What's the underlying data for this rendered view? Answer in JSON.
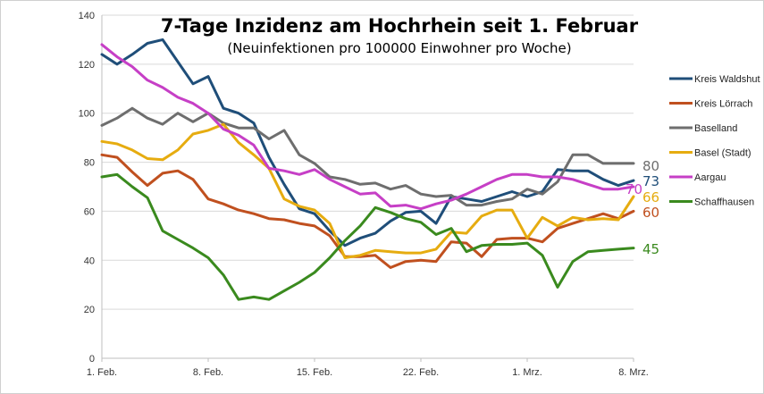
{
  "chart_data": {
    "type": "line",
    "title": "7-Tage Inzidenz am Hochrhein seit 1. Februar",
    "subtitle": "(Neuinfektionen pro 100000 Einwohner pro Woche)",
    "xlabel": "",
    "ylabel": "",
    "ylim": [
      0,
      140
    ],
    "yticks": [
      "0",
      "20",
      "40",
      "60",
      "80",
      "100",
      "120",
      "140"
    ],
    "xticks": [
      {
        "day": 1,
        "label": "1. Feb."
      },
      {
        "day": 8,
        "label": "8. Feb."
      },
      {
        "day": 15,
        "label": "15. Feb."
      },
      {
        "day": 22,
        "label": "22. Feb."
      },
      {
        "day": 29,
        "label": "1. Mrz."
      },
      {
        "day": 36,
        "label": "8. Mrz."
      }
    ],
    "grid": "horizontal",
    "legend_position": "right",
    "series": [
      {
        "name": "Kreis Waldshut",
        "color": "#1f4e79",
        "end_label": "73",
        "points": [
          [
            1,
            124
          ],
          [
            2,
            120
          ],
          [
            3,
            124
          ],
          [
            4,
            128.5
          ],
          [
            5,
            130
          ],
          [
            6,
            121
          ],
          [
            7,
            112
          ],
          [
            8,
            115
          ],
          [
            9,
            102
          ],
          [
            10,
            100
          ],
          [
            11,
            96
          ],
          [
            12,
            82
          ],
          [
            13,
            71
          ],
          [
            14,
            61
          ],
          [
            15,
            59
          ],
          [
            16,
            52
          ],
          [
            17,
            46
          ],
          [
            18,
            49
          ],
          [
            19,
            51
          ],
          [
            20,
            56
          ],
          [
            21,
            59.5
          ],
          [
            22,
            60
          ],
          [
            23,
            55
          ],
          [
            24,
            66
          ],
          [
            25,
            65
          ],
          [
            26,
            64
          ],
          [
            27,
            66
          ],
          [
            28,
            68
          ],
          [
            29,
            66
          ],
          [
            30,
            68
          ],
          [
            31,
            77
          ],
          [
            32,
            76.5
          ],
          [
            33,
            76.5
          ],
          [
            34,
            73
          ],
          [
            35,
            70.5
          ],
          [
            36,
            72.5
          ]
        ]
      },
      {
        "name": "Kreis Lörrach",
        "color": "#c0501f",
        "end_label": "60",
        "points": [
          [
            1,
            83
          ],
          [
            2,
            82
          ],
          [
            3,
            76
          ],
          [
            4,
            70.5
          ],
          [
            5,
            75.5
          ],
          [
            6,
            76.5
          ],
          [
            7,
            73
          ],
          [
            8,
            65
          ],
          [
            9,
            63
          ],
          [
            10,
            60.5
          ],
          [
            11,
            59
          ],
          [
            12,
            57
          ],
          [
            13,
            56.5
          ],
          [
            14,
            55
          ],
          [
            15,
            54
          ],
          [
            16,
            50
          ],
          [
            17,
            41.5
          ],
          [
            18,
            41.5
          ],
          [
            19,
            42
          ],
          [
            20,
            37
          ],
          [
            21,
            39.5
          ],
          [
            22,
            40
          ],
          [
            23,
            39.5
          ],
          [
            24,
            47.5
          ],
          [
            25,
            47
          ],
          [
            26,
            41.5
          ],
          [
            27,
            48.5
          ],
          [
            28,
            49
          ],
          [
            29,
            49
          ],
          [
            30,
            47.5
          ],
          [
            31,
            53
          ],
          [
            32,
            55
          ],
          [
            33,
            57
          ],
          [
            34,
            59
          ],
          [
            35,
            57
          ],
          [
            36,
            60
          ]
        ]
      },
      {
        "name": "Baselland",
        "color": "#6e6e6e",
        "end_label": "80",
        "points": [
          [
            1,
            95
          ],
          [
            2,
            98
          ],
          [
            3,
            102
          ],
          [
            4,
            98
          ],
          [
            5,
            95.5
          ],
          [
            6,
            100
          ],
          [
            7,
            96.5
          ],
          [
            8,
            100
          ],
          [
            9,
            96
          ],
          [
            10,
            94
          ],
          [
            11,
            94
          ],
          [
            12,
            89.5
          ],
          [
            13,
            93
          ],
          [
            14,
            83
          ],
          [
            15,
            79.5
          ],
          [
            16,
            74
          ],
          [
            17,
            73
          ],
          [
            18,
            71
          ],
          [
            19,
            71.5
          ],
          [
            20,
            69
          ],
          [
            21,
            70.5
          ],
          [
            22,
            67
          ],
          [
            23,
            66
          ],
          [
            24,
            66.5
          ],
          [
            25,
            62.5
          ],
          [
            26,
            62.5
          ],
          [
            27,
            64
          ],
          [
            28,
            65
          ],
          [
            29,
            69
          ],
          [
            30,
            67
          ],
          [
            31,
            72
          ],
          [
            32,
            83
          ],
          [
            33,
            83
          ],
          [
            34,
            79.5
          ],
          [
            35,
            79.5
          ],
          [
            36,
            79.5
          ]
        ]
      },
      {
        "name": "Basel (Stadt)",
        "color": "#e6ac10",
        "end_label": "66",
        "points": [
          [
            1,
            88.5
          ],
          [
            2,
            87.5
          ],
          [
            3,
            85
          ],
          [
            4,
            81.5
          ],
          [
            5,
            81
          ],
          [
            6,
            85
          ],
          [
            7,
            91.5
          ],
          [
            8,
            93
          ],
          [
            9,
            95.5
          ],
          [
            10,
            88
          ],
          [
            11,
            83
          ],
          [
            12,
            77.5
          ],
          [
            13,
            65
          ],
          [
            14,
            62
          ],
          [
            15,
            60.5
          ],
          [
            16,
            55
          ],
          [
            17,
            41
          ],
          [
            18,
            42
          ],
          [
            19,
            44
          ],
          [
            20,
            43.5
          ],
          [
            21,
            43
          ],
          [
            22,
            43
          ],
          [
            23,
            44.5
          ],
          [
            24,
            51.5
          ],
          [
            25,
            51
          ],
          [
            26,
            58
          ],
          [
            27,
            60.5
          ],
          [
            28,
            60.5
          ],
          [
            29,
            49
          ],
          [
            30,
            57.5
          ],
          [
            31,
            54
          ],
          [
            32,
            57.5
          ],
          [
            33,
            56.5
          ],
          [
            34,
            57
          ],
          [
            35,
            56.5
          ],
          [
            36,
            66
          ]
        ]
      },
      {
        "name": "Aargau",
        "color": "#c63fc6",
        "end_label": "70",
        "points": [
          [
            1,
            128
          ],
          [
            2,
            123
          ],
          [
            3,
            119
          ],
          [
            4,
            113.5
          ],
          [
            5,
            110.5
          ],
          [
            6,
            106.5
          ],
          [
            7,
            104
          ],
          [
            8,
            100
          ],
          [
            9,
            93.5
          ],
          [
            10,
            91
          ],
          [
            11,
            87
          ],
          [
            12,
            77.5
          ],
          [
            13,
            76.5
          ],
          [
            14,
            75
          ],
          [
            15,
            77
          ],
          [
            16,
            73
          ],
          [
            17,
            70
          ],
          [
            18,
            67
          ],
          [
            19,
            67.5
          ],
          [
            20,
            62
          ],
          [
            21,
            62.5
          ],
          [
            22,
            61
          ],
          [
            23,
            63
          ],
          [
            24,
            64.5
          ],
          [
            25,
            67
          ],
          [
            26,
            70
          ],
          [
            27,
            73
          ],
          [
            28,
            75
          ],
          [
            29,
            75
          ],
          [
            30,
            74
          ],
          [
            31,
            74
          ],
          [
            32,
            73
          ],
          [
            33,
            71
          ],
          [
            34,
            69
          ],
          [
            35,
            69
          ],
          [
            36,
            70
          ]
        ]
      },
      {
        "name": "Schaffhausen",
        "color": "#3a8a1e",
        "end_label": "45",
        "points": [
          [
            1,
            74
          ],
          [
            2,
            75
          ],
          [
            3,
            70
          ],
          [
            4,
            65.5
          ],
          [
            5,
            52
          ],
          [
            6,
            48.5
          ],
          [
            7,
            45
          ],
          [
            8,
            41
          ],
          [
            9,
            34
          ],
          [
            10,
            24
          ],
          [
            11,
            25
          ],
          [
            12,
            24
          ],
          [
            13,
            27.5
          ],
          [
            14,
            31
          ],
          [
            15,
            35
          ],
          [
            16,
            41
          ],
          [
            17,
            48
          ],
          [
            18,
            54
          ],
          [
            19,
            61.5
          ],
          [
            20,
            59.5
          ],
          [
            21,
            57
          ],
          [
            22,
            55.5
          ],
          [
            23,
            50.5
          ],
          [
            24,
            53
          ],
          [
            25,
            43.5
          ],
          [
            26,
            46
          ],
          [
            27,
            46.5
          ],
          [
            28,
            46.5
          ],
          [
            29,
            47
          ],
          [
            30,
            42
          ],
          [
            31,
            29
          ],
          [
            32,
            39.5
          ],
          [
            33,
            43.5
          ],
          [
            34,
            44
          ],
          [
            35,
            44.5
          ],
          [
            36,
            45
          ]
        ]
      }
    ]
  }
}
